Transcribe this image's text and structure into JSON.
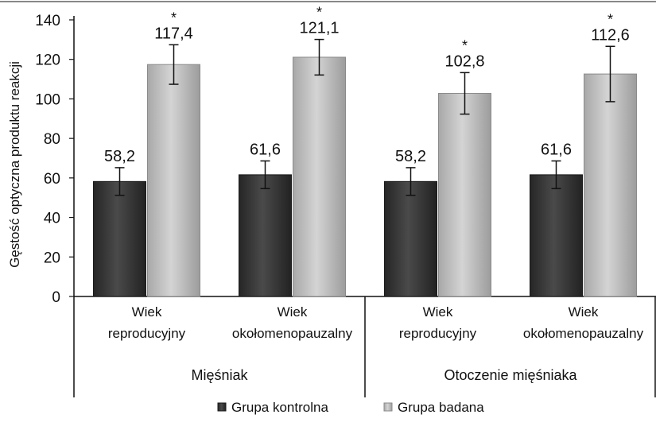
{
  "chart_data": {
    "type": "bar",
    "ylabel": "Gęstość optyczna produktu reakcji",
    "ylim": [
      0,
      140
    ],
    "yticks": [
      0,
      20,
      40,
      60,
      80,
      100,
      120,
      140
    ],
    "grid": false,
    "legend_position": "bottom-center",
    "groups": [
      {
        "label": "Mięśniak",
        "categories": [
          [
            "Wiek",
            "reproducyjny"
          ],
          [
            "Wiek",
            "okołomenopauzalny"
          ]
        ]
      },
      {
        "label": "Otoczenie mięśniaka",
        "categories": [
          [
            "Wiek",
            "reproducyjny"
          ],
          [
            "Wiek",
            "okołomenopauzalny"
          ]
        ]
      }
    ],
    "series": [
      {
        "name": "Grupa kontrolna",
        "color": "#3a3a3a",
        "values": [
          58.2,
          61.6,
          58.2,
          61.6
        ],
        "value_labels": [
          "58,2",
          "61,6",
          "58,2",
          "61,6"
        ],
        "error": [
          7,
          7,
          7,
          7
        ],
        "markers": [
          "",
          "",
          "",
          ""
        ]
      },
      {
        "name": "Grupa badana",
        "color": "#bdbdbd",
        "values": [
          117.4,
          121.1,
          102.8,
          112.6
        ],
        "value_labels": [
          "117,4",
          "121,1",
          "102,8",
          "112,6"
        ],
        "error": [
          10,
          9,
          10.5,
          14
        ],
        "markers": [
          "*",
          "*",
          "*",
          "*"
        ]
      }
    ]
  }
}
